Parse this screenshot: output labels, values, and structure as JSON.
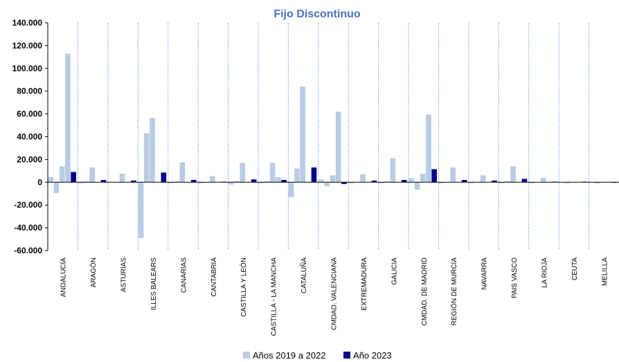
{
  "chart_data": {
    "type": "bar",
    "title": "Fijo  Discontinuo",
    "xlabel": "",
    "ylabel": "",
    "ylim": [
      -60000,
      140000
    ],
    "yticks": [
      140000,
      120000,
      100000,
      80000,
      60000,
      40000,
      20000,
      0,
      -20000,
      -40000,
      -60000
    ],
    "ytick_labels": [
      "140.000",
      "120.000",
      "100.000",
      "80.000",
      "60.000",
      "40.000",
      "20.000",
      "0",
      "-20.000",
      "-40.000",
      "-60.000"
    ],
    "grid": false,
    "legend_position": "bottom",
    "categories": [
      "ANDALUCÍA",
      "ARAGÓN",
      "ASTURIAS",
      "ILLES BALEARS",
      "CANARIAS",
      "CANTABRIA",
      "CASTILLA Y LEÓN",
      "CASTILLA - LA MANCHA",
      "CATALUÑA",
      "CMDAD. VALENCIANA",
      "EXTREMADURA",
      "GALICIA",
      "CMDAD. DE MADRID",
      "REGIÓN DE MURCIA",
      "NAVARRA",
      "PAIS VASCO",
      "LA RIOJA",
      "CEUTA",
      "MELILLA"
    ],
    "series": [
      {
        "name": "Años 2019 a 2022",
        "color": "#B8CCE4",
        "values": [
          [
            4500,
            -9500,
            14000,
            113000
          ],
          [
            -1000,
            1000,
            13000,
            0
          ],
          [
            0,
            0,
            7500,
            0
          ],
          [
            -49000,
            43000,
            56500,
            0
          ],
          [
            -1000,
            1000,
            17500,
            0
          ],
          [
            -1000,
            0,
            5500,
            0
          ],
          [
            -2000,
            1000,
            17000,
            0
          ],
          [
            -1000,
            1000,
            17000,
            4500
          ],
          [
            -13000,
            12000,
            84000,
            0
          ],
          [
            2500,
            -3500,
            6000,
            62000
          ],
          [
            -1000,
            500,
            7000,
            0
          ],
          [
            -1000,
            1000,
            21000,
            0
          ],
          [
            3500,
            -6500,
            7500,
            59500
          ],
          [
            -1000,
            0,
            13000,
            0
          ],
          [
            -1000,
            0,
            6000,
            0
          ],
          [
            -1000,
            1000,
            14000,
            0
          ],
          [
            -1000,
            0,
            4000,
            0
          ],
          [
            0,
            -1000,
            0,
            0
          ],
          [
            0,
            -1000,
            0,
            0
          ]
        ]
      },
      {
        "name": "Año 2023",
        "color": "#00008B",
        "values": [
          9000,
          2000,
          1500,
          8500,
          2000,
          500,
          2500,
          2000,
          13000,
          -1500,
          1500,
          2000,
          11500,
          2000,
          1500,
          3000,
          500,
          500,
          -500
        ]
      }
    ]
  }
}
